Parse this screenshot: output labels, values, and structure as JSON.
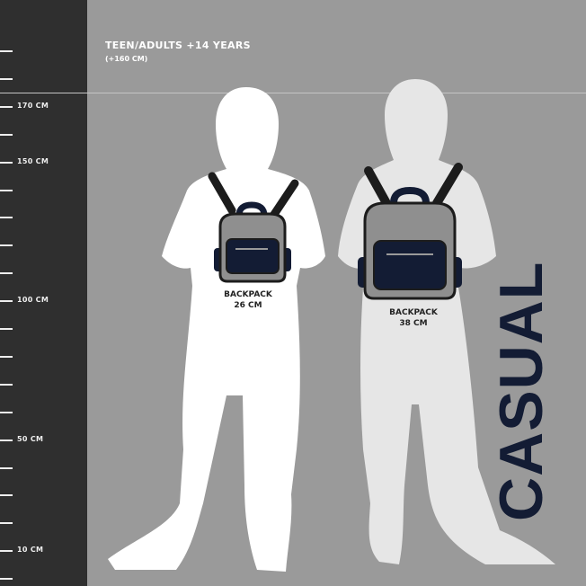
{
  "header": {
    "title": "TEEN/ADULTS +14 YEARS",
    "subtitle": "(+160 CM)"
  },
  "ruler": {
    "labels": [
      "170 CM",
      "150 CM",
      "100 CM",
      "50 CM",
      "10 CM"
    ]
  },
  "figures": [
    {
      "backpack_label": "BACKPACK",
      "size": "26 CM"
    },
    {
      "backpack_label": "BACKPACK",
      "size": "38 CM"
    }
  ],
  "category": "CASUAL",
  "colors": {
    "ruler_bg": "#2f2f2f",
    "background": "#9a9a9a",
    "navy": "#131c34",
    "figure_front": "#ffffff",
    "figure_back": "#e6e6e6"
  }
}
